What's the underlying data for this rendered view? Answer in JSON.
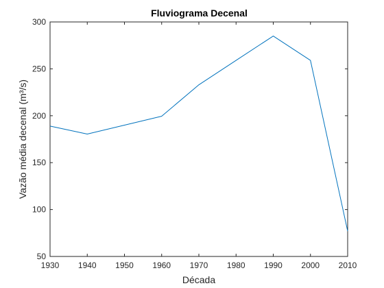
{
  "chart_data": {
    "type": "line",
    "title": "Fluviograma Decenal",
    "xlabel": "Década",
    "ylabel": "Vazão média decenal (m³/s)",
    "xlim": [
      1930,
      2010
    ],
    "ylim": [
      50,
      300
    ],
    "xticks": [
      1930,
      1940,
      1950,
      1960,
      1970,
      1980,
      1990,
      2000,
      2010
    ],
    "yticks": [
      50,
      100,
      150,
      200,
      250,
      300
    ],
    "grid": false,
    "series": [
      {
        "color": "#0072BD",
        "x": [
          1930,
          1940,
          1960,
          1970,
          1980,
          1990,
          2000,
          2010
        ],
        "y": [
          189,
          180.5,
          199.5,
          233,
          259,
          285,
          259,
          77
        ]
      }
    ]
  }
}
